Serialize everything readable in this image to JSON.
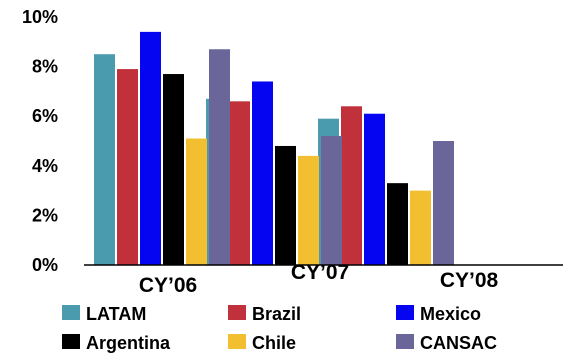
{
  "chart_data": {
    "type": "bar",
    "title": "",
    "xlabel": "",
    "ylabel": "",
    "categories": [
      "CY’06",
      "CY’07",
      "CY’08"
    ],
    "ylim": [
      0,
      10
    ],
    "yticks": [
      {
        "value": 0,
        "label": "0%"
      },
      {
        "value": 2,
        "label": "2%"
      },
      {
        "value": 4,
        "label": "4%"
      },
      {
        "value": 6,
        "label": "6%"
      },
      {
        "value": 8,
        "label": "8%"
      },
      {
        "value": 10,
        "label": "10%"
      }
    ],
    "grid": false,
    "legend_position": "bottom",
    "series": [
      {
        "name": "LATAM",
        "color": "#4a9bae",
        "values": [
          8.5,
          6.7,
          5.9
        ]
      },
      {
        "name": "Brazil",
        "color": "#c0313b",
        "values": [
          7.9,
          6.6,
          6.4
        ]
      },
      {
        "name": "Mexico",
        "color": "#0505f2",
        "values": [
          9.4,
          7.4,
          6.1
        ]
      },
      {
        "name": "Argentina",
        "color": "#000000",
        "values": [
          7.7,
          4.8,
          3.3
        ]
      },
      {
        "name": "Chile",
        "color": "#f2bf30",
        "values": [
          5.1,
          4.4,
          3.0
        ]
      },
      {
        "name": "CANSAC",
        "color": "#6b6699",
        "values": [
          8.7,
          5.2,
          5.0
        ]
      }
    ]
  }
}
